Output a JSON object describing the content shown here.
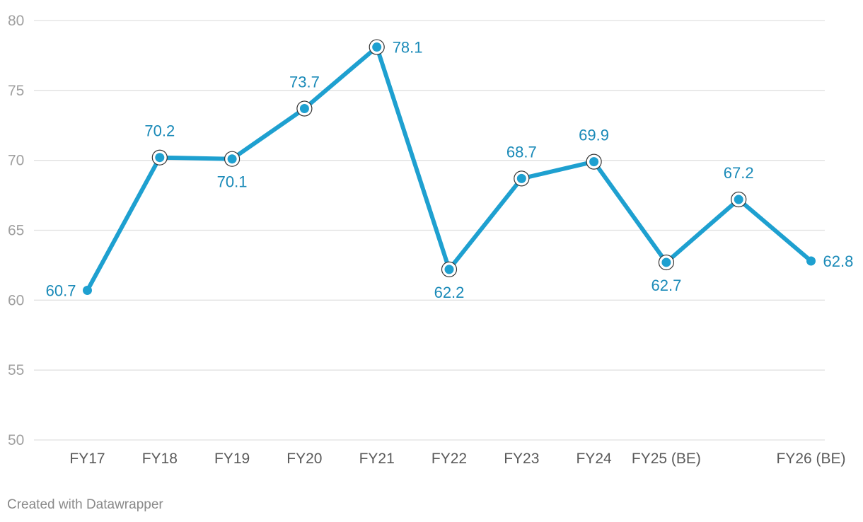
{
  "chart_data": {
    "type": "line",
    "categories": [
      "FY17",
      "FY18",
      "FY19",
      "FY20",
      "FY21",
      "FY22",
      "FY23",
      "FY24",
      "FY25 (BE)",
      "",
      "FY26 (BE)"
    ],
    "series": [
      {
        "values": [
          60.7,
          70.2,
          70.1,
          73.7,
          78.1,
          62.2,
          68.7,
          69.9,
          62.7,
          67.2,
          62.8
        ]
      }
    ],
    "data_labels": [
      "60.7",
      "70.2",
      "70.1",
      "73.7",
      "78.1",
      "62.2",
      "68.7",
      "69.9",
      "62.7",
      "67.2",
      "62.8"
    ],
    "y_ticks": [
      50,
      55,
      60,
      65,
      70,
      75,
      80
    ],
    "ylim": [
      50,
      80
    ],
    "grid": "horizontal",
    "title": "",
    "xlabel": "",
    "ylabel": "",
    "colors": {
      "line": "#1ea0d0",
      "label": "#1a8ab8",
      "grid": "#e0e0e0"
    }
  },
  "footer": {
    "credit": "Created with Datawrapper"
  }
}
